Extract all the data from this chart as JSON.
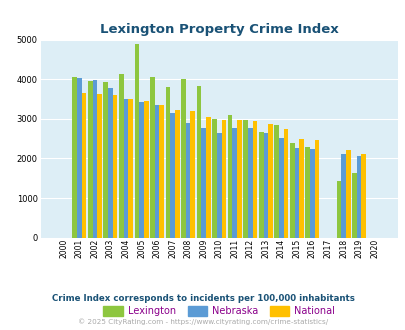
{
  "title": "Lexington Property Crime Index",
  "title_color": "#1a5276",
  "years": [
    2000,
    2001,
    2002,
    2003,
    2004,
    2005,
    2006,
    2007,
    2008,
    2009,
    2010,
    2011,
    2012,
    2013,
    2014,
    2015,
    2016,
    2017,
    2018,
    2019,
    2020
  ],
  "lexington": [
    0,
    4060,
    3950,
    3940,
    4140,
    4880,
    4060,
    3800,
    4010,
    3830,
    2990,
    3100,
    2960,
    2660,
    2840,
    2380,
    2280,
    0,
    1440,
    1620,
    0
  ],
  "nebraska": [
    0,
    4030,
    3970,
    3780,
    3490,
    3430,
    3340,
    3150,
    2890,
    2760,
    2650,
    2770,
    2760,
    2630,
    2520,
    2270,
    2250,
    0,
    2110,
    2060,
    0
  ],
  "national": [
    0,
    3660,
    3620,
    3600,
    3510,
    3440,
    3340,
    3230,
    3200,
    3040,
    2960,
    2960,
    2940,
    2870,
    2750,
    2490,
    2460,
    0,
    2200,
    2120,
    0
  ],
  "lex_color": "#8dc63f",
  "neb_color": "#5b9bd5",
  "nat_color": "#ffc000",
  "bg_color": "#ddeef6",
  "ylim": [
    0,
    5000
  ],
  "yticks": [
    0,
    1000,
    2000,
    3000,
    4000,
    5000
  ],
  "subtitle": "Crime Index corresponds to incidents per 100,000 inhabitants",
  "subtitle_color": "#1a5276",
  "footer": "© 2025 CityRating.com - https://www.cityrating.com/crime-statistics/",
  "footer_color": "#aaaaaa",
  "legend_labels": [
    "Lexington",
    "Nebraska",
    "National"
  ],
  "legend_label_color": "#8b008b"
}
